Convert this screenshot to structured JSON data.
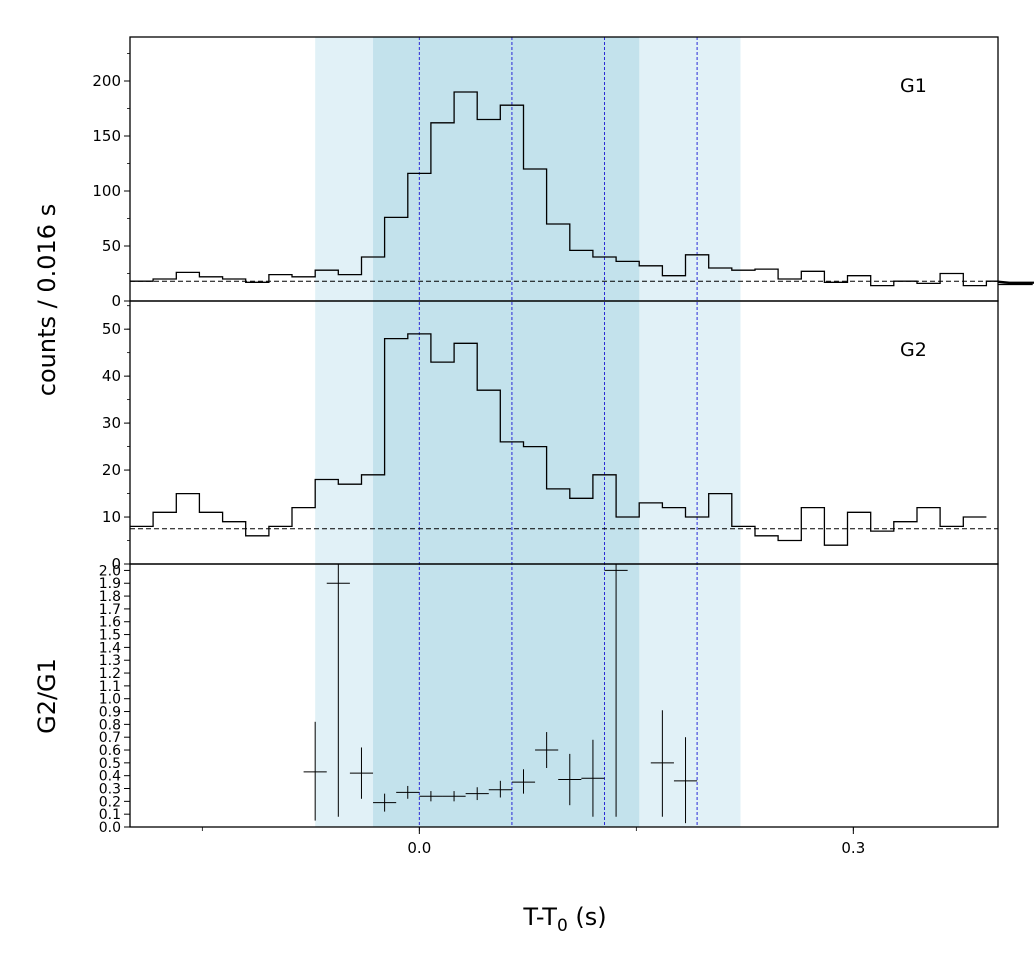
{
  "chart_data": {
    "type": "line",
    "x_axis": {
      "label_main": "T-T",
      "label_sub": "0",
      "label_unit": " (s)",
      "range": [
        -0.2,
        0.4
      ],
      "ticks": [
        0.0,
        0.3
      ],
      "tick_labels": [
        "0.0",
        "0.3"
      ]
    },
    "shared_ylabel": "counts /  0.016 s",
    "shaded_regions": [
      {
        "x0": -0.072,
        "x1": 0.222,
        "color": "#d7ecf4",
        "opacity": 0.75
      },
      {
        "x0": -0.032,
        "x1": 0.152,
        "color": "#b8dce8",
        "opacity": 0.75
      }
    ],
    "vertical_lines": {
      "x": [
        0.0,
        0.064,
        0.128,
        0.192
      ],
      "color": "#2a2ad6",
      "style": "dashed"
    },
    "panels": [
      {
        "id": "G1",
        "label": "G1",
        "type": "step",
        "ylim": [
          0,
          240
        ],
        "yticks": [
          0,
          50,
          100,
          150,
          200
        ],
        "ytick_labels": [
          "0",
          "50",
          "100",
          "150",
          "200"
        ],
        "background_level": 18,
        "bin_width": 0.016,
        "bin_start": -0.2,
        "values": [
          18,
          20,
          26,
          22,
          20,
          17,
          24,
          22,
          28,
          24,
          40,
          76,
          116,
          162,
          190,
          165,
          178,
          120,
          70,
          46,
          40,
          36,
          32,
          23,
          42,
          30,
          28,
          29,
          20,
          27,
          17,
          23,
          14,
          18,
          16,
          25,
          14,
          18,
          17,
          15,
          17
        ]
      },
      {
        "id": "G2",
        "label": "G2",
        "type": "step",
        "ylim": [
          0,
          56
        ],
        "yticks": [
          0,
          10,
          20,
          30,
          40,
          50
        ],
        "ytick_labels": [
          "0",
          "10",
          "20",
          "30",
          "40",
          "50"
        ],
        "background_level": 7.5,
        "bin_width": 0.016,
        "bin_start": -0.2,
        "values": [
          8,
          11,
          15,
          11,
          9,
          6,
          8,
          12,
          18,
          17,
          19,
          48,
          49,
          43,
          47,
          37,
          26,
          25,
          16,
          14,
          19,
          10,
          13,
          12,
          10,
          15,
          8,
          6,
          5,
          12,
          4,
          11,
          7,
          9,
          12,
          8,
          10
        ]
      },
      {
        "id": "ratio",
        "ylabel": "G2/G1",
        "type": "errorbar",
        "ylim": [
          0,
          2.05
        ],
        "yticks": [
          0.0,
          0.1,
          0.2,
          0.3,
          0.4,
          0.5,
          0.6,
          0.7,
          0.8,
          0.9,
          1.0,
          1.1,
          1.2,
          1.3,
          1.4,
          1.5,
          1.6,
          1.7,
          1.8,
          1.9,
          2.0
        ],
        "ytick_labels": [
          "0.0",
          "0.1",
          "0.2",
          "0.3",
          "0.4",
          "0.5",
          "0.6",
          "0.7",
          "0.8",
          "0.9",
          "1.0",
          "1.1",
          "1.2",
          "1.3",
          "1.4",
          "1.5",
          "1.6",
          "1.7",
          "1.8",
          "1.9",
          "2.0"
        ],
        "points": [
          {
            "x": -0.072,
            "y": 0.43,
            "xerr": 0.008,
            "ylo": 0.05,
            "yhi": 0.82
          },
          {
            "x": -0.056,
            "y": 1.9,
            "xerr": 0.008,
            "ylo": 0.08,
            "yhi": 2.05
          },
          {
            "x": -0.04,
            "y": 0.42,
            "xerr": 0.008,
            "ylo": 0.22,
            "yhi": 0.62
          },
          {
            "x": -0.024,
            "y": 0.19,
            "xerr": 0.008,
            "ylo": 0.12,
            "yhi": 0.26
          },
          {
            "x": -0.008,
            "y": 0.27,
            "xerr": 0.008,
            "ylo": 0.22,
            "yhi": 0.32
          },
          {
            "x": 0.008,
            "y": 0.24,
            "xerr": 0.008,
            "ylo": 0.2,
            "yhi": 0.28
          },
          {
            "x": 0.024,
            "y": 0.24,
            "xerr": 0.008,
            "ylo": 0.2,
            "yhi": 0.28
          },
          {
            "x": 0.04,
            "y": 0.26,
            "xerr": 0.008,
            "ylo": 0.21,
            "yhi": 0.31
          },
          {
            "x": 0.056,
            "y": 0.29,
            "xerr": 0.008,
            "ylo": 0.23,
            "yhi": 0.36
          },
          {
            "x": 0.072,
            "y": 0.35,
            "xerr": 0.008,
            "ylo": 0.26,
            "yhi": 0.45
          },
          {
            "x": 0.088,
            "y": 0.6,
            "xerr": 0.008,
            "ylo": 0.46,
            "yhi": 0.74
          },
          {
            "x": 0.104,
            "y": 0.37,
            "xerr": 0.008,
            "ylo": 0.17,
            "yhi": 0.57
          },
          {
            "x": 0.12,
            "y": 0.38,
            "xerr": 0.008,
            "ylo": 0.08,
            "yhi": 0.68
          },
          {
            "x": 0.136,
            "y": 2.0,
            "xerr": 0.008,
            "ylo": 0.08,
            "yhi": 2.05
          },
          {
            "x": 0.168,
            "y": 0.5,
            "xerr": 0.008,
            "ylo": 0.08,
            "yhi": 0.91
          },
          {
            "x": 0.184,
            "y": 0.36,
            "xerr": 0.008,
            "ylo": 0.03,
            "yhi": 0.7
          }
        ]
      }
    ]
  }
}
